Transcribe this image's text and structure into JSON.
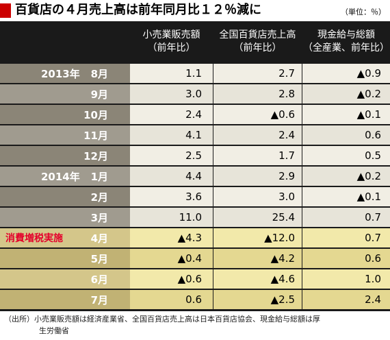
{
  "title": "百貨店の４月売上高は前年同月比１２％減に",
  "unit": "（単位：％）",
  "columns": [
    {
      "line1": "小売業販売額",
      "line2": "（前年比）"
    },
    {
      "line1": "全国百貨店売上高",
      "line2": "（前年比）"
    },
    {
      "line1": "現金給与総額",
      "line2": "（全産業、前年比）"
    }
  ],
  "rows": [
    {
      "year": "2013年",
      "month": "8月",
      "v": [
        "1.1",
        "2.7",
        "▲0.9"
      ]
    },
    {
      "year": "",
      "month": "9月",
      "v": [
        "3.0",
        "2.8",
        "▲0.2"
      ]
    },
    {
      "year": "",
      "month": "10月",
      "v": [
        "2.4",
        "▲0.6",
        "▲0.1"
      ]
    },
    {
      "year": "",
      "month": "11月",
      "v": [
        "4.1",
        "2.4",
        "0.6"
      ]
    },
    {
      "year": "",
      "month": "12月",
      "v": [
        "2.5",
        "1.7",
        "0.5"
      ]
    },
    {
      "year": "2014年",
      "month": "1月",
      "v": [
        "4.4",
        "2.9",
        "▲0.2"
      ]
    },
    {
      "year": "",
      "month": "2月",
      "v": [
        "3.6",
        "3.0",
        "▲0.1"
      ]
    },
    {
      "year": "",
      "month": "3月",
      "v": [
        "11.0",
        "25.4",
        "0.7"
      ]
    },
    {
      "year": "",
      "month": "4月",
      "note": "消費増税実施",
      "v": [
        "▲4.3",
        "▲12.0",
        "0.7"
      ]
    },
    {
      "year": "",
      "month": "5月",
      "v": [
        "▲0.4",
        "▲4.2",
        "0.6"
      ]
    },
    {
      "year": "",
      "month": "6月",
      "v": [
        "▲0.6",
        "▲4.6",
        "1.0"
      ]
    },
    {
      "year": "",
      "month": "7月",
      "v": [
        "0.6",
        "▲2.5",
        "2.4"
      ]
    }
  ],
  "source_line1": "（出所）小売業販売額は経済産業省、全国百貨店売上高は日本百貨店協会、現金給与総額は厚",
  "source_line2": "生労働省",
  "colors": {
    "title_mark": "#cc0000",
    "note_text": "#e4002b",
    "header_bg": "#1a1a1a"
  }
}
